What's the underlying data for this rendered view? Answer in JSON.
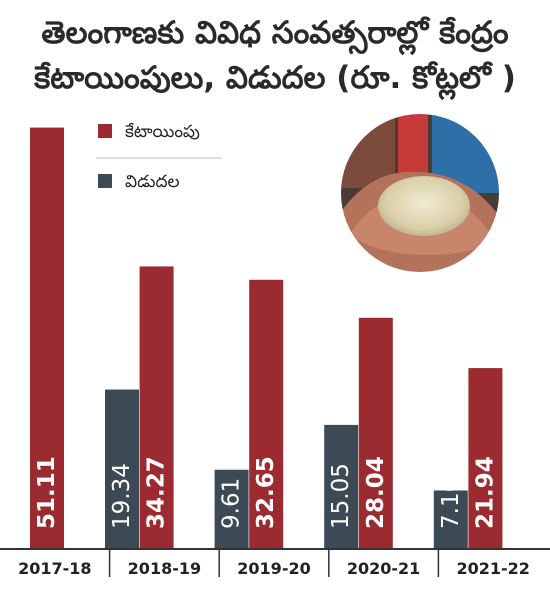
{
  "chart_data": {
    "type": "bar",
    "title_lines": [
      "తెలంగాణకు వివిధ సంవత్సరాల్లో కేంద్రం",
      "కేటాయింపులు, విడుదల (రూ. కోట్లలో )"
    ],
    "categories": [
      "2017-18",
      "2018-19",
      "2019-20",
      "2020-21",
      "2021-22"
    ],
    "series": [
      {
        "name": "కేటాయింపు",
        "color": "#9b2a31",
        "values": [
          51.11,
          34.27,
          32.65,
          28.04,
          21.94
        ]
      },
      {
        "name": "విడుదల",
        "color": "#3c4a55",
        "values": [
          19.34,
          9.61,
          15.05,
          7.1,
          0
        ]
      }
    ],
    "value_labels": [
      [
        "51.11",
        "34.27",
        "32.65",
        "28.04",
        "21.94"
      ],
      [
        "19.34",
        "9.61",
        "15.05",
        "7.10",
        "0"
      ]
    ],
    "ylim": [
      0,
      53
    ],
    "legend_position": "top-left",
    "grid": false
  },
  "colors": {
    "allocation": "#9b2a31",
    "release": "#3c4a55",
    "axis": "#333333",
    "title": "#2a2a2a"
  },
  "photo": {
    "icon": "hands-holding-rice-photo"
  }
}
